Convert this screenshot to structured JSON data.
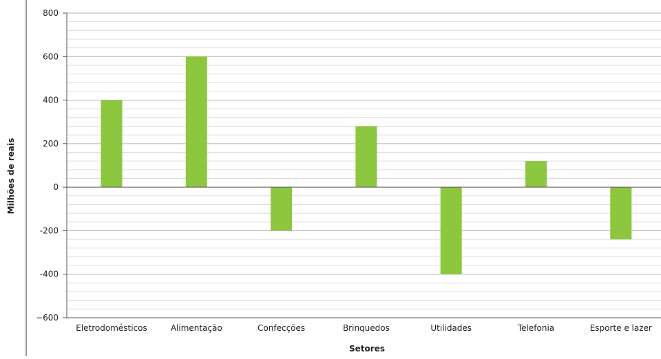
{
  "chart_data": {
    "type": "bar",
    "title": "",
    "xlabel": "Setores",
    "ylabel": "Milhões de reais",
    "categories": [
      "Eletrodomésticos",
      "Alimentação",
      "Confecções",
      "Brinquedos",
      "Utilidades",
      "Telefonia",
      "Esporte e lazer"
    ],
    "values": [
      400,
      600,
      -200,
      280,
      -400,
      120,
      -240
    ],
    "ylim": [
      -600,
      800
    ],
    "yticks": [
      800,
      600,
      400,
      200,
      0,
      -200,
      -400,
      -600
    ],
    "ytick_labels": [
      "800",
      "600",
      "400",
      "200",
      "0",
      "-200",
      "-400",
      "−600"
    ],
    "grid": true,
    "legend": "none",
    "bar_color": "#8dc63f"
  }
}
